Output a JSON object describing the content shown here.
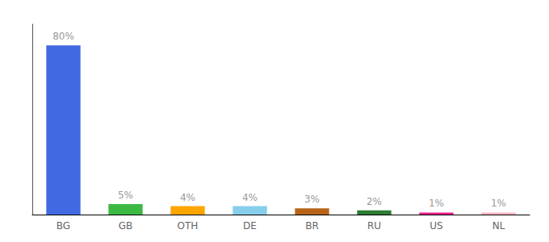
{
  "chart_data": {
    "type": "bar",
    "categories": [
      "BG",
      "GB",
      "OTH",
      "DE",
      "BR",
      "RU",
      "US",
      "NL"
    ],
    "values": [
      80,
      5,
      4,
      4,
      3,
      2,
      1,
      1
    ],
    "value_labels": [
      "80%",
      "5%",
      "4%",
      "4%",
      "3%",
      "2%",
      "1%",
      "1%"
    ],
    "colors": [
      "#4169E1",
      "#3CB943",
      "#FFA500",
      "#87CEEB",
      "#B8651A",
      "#2E7D32",
      "#E91E8C",
      "#FFB6C1"
    ],
    "ylim": [
      0,
      90
    ],
    "data_labels": true,
    "tick_labels": "x",
    "grid": false
  }
}
